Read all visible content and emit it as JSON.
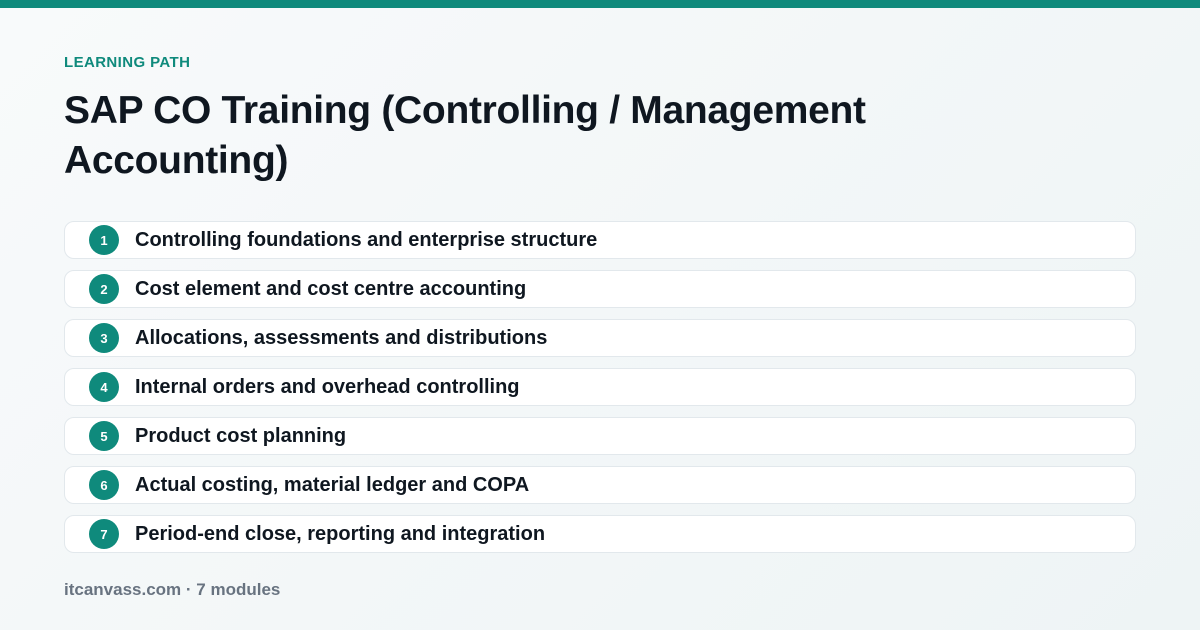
{
  "header": {
    "eyebrow": "LEARNING PATH",
    "title": "SAP CO Training (Controlling / Management Accounting)"
  },
  "modules": [
    {
      "number": "1",
      "label": "Controlling foundations and enterprise structure"
    },
    {
      "number": "2",
      "label": "Cost element and cost centre accounting"
    },
    {
      "number": "3",
      "label": "Allocations, assessments and distributions"
    },
    {
      "number": "4",
      "label": "Internal orders and overhead controlling"
    },
    {
      "number": "5",
      "label": "Product cost planning"
    },
    {
      "number": "6",
      "label": "Actual costing, material ledger and COPA"
    },
    {
      "number": "7",
      "label": "Period-end close, reporting and integration"
    }
  ],
  "footer": {
    "text": "itcanvass.com · 7 modules"
  },
  "colors": {
    "accent": "#0f8a7c",
    "text": "#0f1720",
    "muted": "#687380"
  }
}
